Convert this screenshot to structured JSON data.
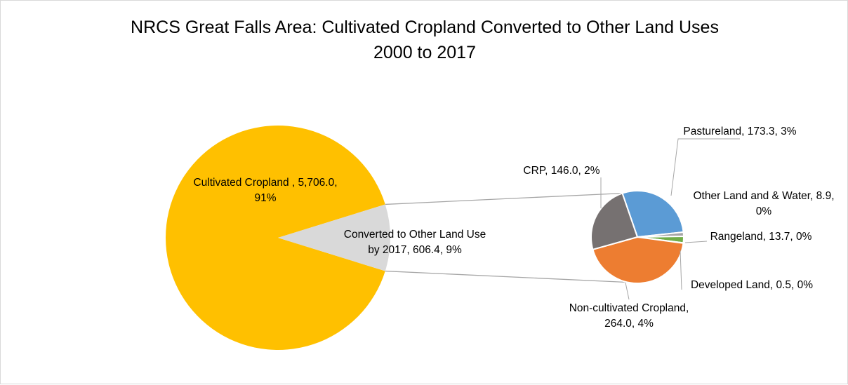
{
  "chart_data": {
    "type": "pie",
    "subtype": "pie-of-pie",
    "title_lines": [
      "NRCS Great Falls Area: Cultivated Cropland Converted to Other Land Uses",
      "2000 to 2017"
    ],
    "legend": "none",
    "primary": {
      "slices": [
        {
          "name": "Cultivated Cropland",
          "value": 5706.0,
          "percent": 91,
          "color": "#ffc000",
          "label_lines": [
            "Cultivated Cropland , 5,706.0,",
            "91%"
          ]
        },
        {
          "name": "Converted to Other Land Use by 2017",
          "value": 606.4,
          "percent": 9,
          "color": "#d9d9d9",
          "label_lines": [
            "Converted to Other Land Use",
            "by 2017, 606.4, 9%"
          ]
        }
      ]
    },
    "secondary": {
      "slices": [
        {
          "name": "Pastureland",
          "value": 173.3,
          "percent": 3,
          "color": "#5b9bd5",
          "label_lines": [
            "Pastureland, 173.3, 3%"
          ]
        },
        {
          "name": "Other Land and & Water",
          "value": 8.9,
          "percent": 0,
          "color": "#a5a5a5",
          "label_lines": [
            "Other Land and & Water, 8.9,",
            "0%"
          ]
        },
        {
          "name": "Rangeland",
          "value": 13.7,
          "percent": 0,
          "color": "#70ad47",
          "label_lines": [
            "Rangeland, 13.7, 0%"
          ]
        },
        {
          "name": "Developed Land",
          "value": 0.5,
          "percent": 0,
          "color": "#4472c4",
          "label_lines": [
            "Developed Land, 0.5, 0%"
          ]
        },
        {
          "name": "Non-cultivated Cropland",
          "value": 264.0,
          "percent": 4,
          "color": "#ed7d31",
          "label_lines": [
            "Non-cultivated Cropland,",
            "264.0, 4%"
          ]
        },
        {
          "name": "CRP",
          "value": 146.0,
          "percent": 2,
          "color": "#767171",
          "label_lines": [
            "CRP, 146.0, 2%"
          ]
        }
      ]
    }
  }
}
